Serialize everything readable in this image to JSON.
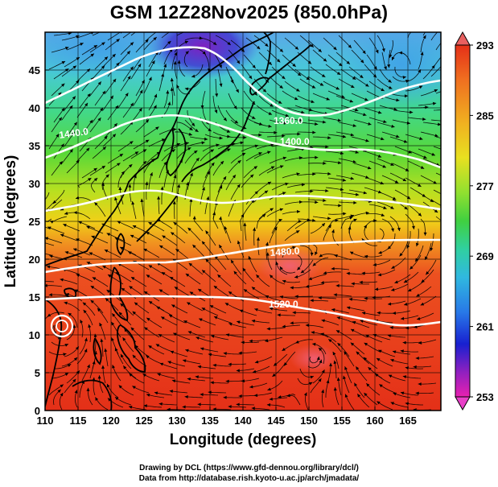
{
  "title": "GSM 12Z28Nov2025 (850.0hPa)",
  "x_axis_label": "Longitude (degrees)",
  "y_axis_label": "Latitude  (degrees)",
  "credits": [
    "Drawing by DCL (https://www.gfd-dennou.org/library/dcl/)",
    "Data from http://database.rish.kyoto-u.ac.jp/arch/jmadata/"
  ],
  "map": {
    "lon_range": [
      110,
      170
    ],
    "lat_range": [
      0,
      50
    ],
    "lon_ticks": [
      110,
      115,
      120,
      125,
      130,
      135,
      140,
      145,
      150,
      155,
      160,
      165
    ],
    "lat_ticks": [
      0,
      5,
      10,
      15,
      20,
      25,
      30,
      35,
      40,
      45
    ]
  },
  "colorbar": {
    "min": 253,
    "max": 293,
    "tick_labels": [
      "293",
      "285",
      "277",
      "269",
      "261",
      "253"
    ],
    "tick_values": [
      293,
      285,
      277,
      269,
      261,
      253
    ]
  },
  "contours": [
    {
      "label": "1360.0"
    },
    {
      "label": "1400.0"
    },
    {
      "label": "1440.0"
    },
    {
      "label": "1480.0"
    },
    {
      "label": "1520.0"
    }
  ],
  "colors": {
    "warm": "#e83018",
    "cold": "#a020c8",
    "contour": "#ffffff",
    "coast": "#000000"
  }
}
